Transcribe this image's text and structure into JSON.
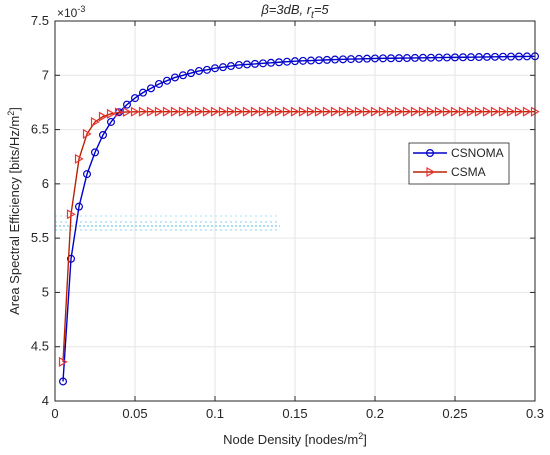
{
  "chart_data": {
    "type": "line",
    "title": {
      "beta": "β",
      "part1": "=3dB, r",
      "sub": "t",
      "part2": "=5"
    },
    "xlabel": {
      "main": "Node Density [nodes/m",
      "sup": "2",
      "close": "]"
    },
    "ylabel": {
      "main": "Area Spectral Efficiency [bits/Hz/m",
      "sup": "2",
      "close": "]"
    },
    "exponent": {
      "base": "×10",
      "sup": "-3"
    },
    "xlim": [
      0,
      0.3
    ],
    "ylim": [
      4,
      7.5
    ],
    "xticks": [
      0,
      0.05,
      0.1,
      0.15,
      0.2,
      0.25,
      0.3
    ],
    "xtick_labels": [
      "0",
      "0.05",
      "0.1",
      "0.15",
      "0.2",
      "0.25",
      "0.3"
    ],
    "yticks": [
      4,
      4.5,
      5,
      5.5,
      6,
      6.5,
      7,
      7.5
    ],
    "ytick_labels": [
      "4",
      "4.5",
      "5",
      "5.5",
      "6",
      "6.5",
      "7",
      "7.5"
    ],
    "grid": true,
    "legend_position": "right",
    "series": [
      {
        "name": "CSNOMA",
        "color": "#0000cc",
        "marker": "circle",
        "x": [
          0.005,
          0.01,
          0.015,
          0.02,
          0.025,
          0.03,
          0.035,
          0.04,
          0.045,
          0.05,
          0.055,
          0.06,
          0.065,
          0.07,
          0.075,
          0.08,
          0.085,
          0.09,
          0.095,
          0.1,
          0.105,
          0.11,
          0.115,
          0.12,
          0.125,
          0.13,
          0.135,
          0.14,
          0.145,
          0.15,
          0.155,
          0.16,
          0.165,
          0.17,
          0.175,
          0.18,
          0.185,
          0.19,
          0.195,
          0.2,
          0.205,
          0.21,
          0.215,
          0.22,
          0.225,
          0.23,
          0.235,
          0.24,
          0.245,
          0.25,
          0.255,
          0.26,
          0.265,
          0.27,
          0.275,
          0.28,
          0.285,
          0.29,
          0.295,
          0.3
        ],
        "y": [
          4.18,
          5.31,
          5.79,
          6.09,
          6.29,
          6.45,
          6.57,
          6.66,
          6.73,
          6.79,
          6.84,
          6.88,
          6.92,
          6.95,
          6.98,
          7.0,
          7.02,
          7.04,
          7.05,
          7.065,
          7.075,
          7.085,
          7.095,
          7.1,
          7.105,
          7.11,
          7.115,
          7.12,
          7.125,
          7.13,
          7.133,
          7.136,
          7.139,
          7.142,
          7.145,
          7.147,
          7.149,
          7.151,
          7.153,
          7.155,
          7.156,
          7.157,
          7.158,
          7.159,
          7.16,
          7.161,
          7.162,
          7.163,
          7.164,
          7.165,
          7.166,
          7.167,
          7.168,
          7.169,
          7.17,
          7.171,
          7.172,
          7.173,
          7.174,
          7.175
        ]
      },
      {
        "name": "CSMA",
        "color": "#bb2200",
        "marker": "triangle-right",
        "x": [
          0.005,
          0.01,
          0.015,
          0.02,
          0.025,
          0.03,
          0.035,
          0.04,
          0.045,
          0.05,
          0.055,
          0.06,
          0.065,
          0.07,
          0.075,
          0.08,
          0.085,
          0.09,
          0.095,
          0.1,
          0.105,
          0.11,
          0.115,
          0.12,
          0.125,
          0.13,
          0.135,
          0.14,
          0.145,
          0.15,
          0.155,
          0.16,
          0.165,
          0.17,
          0.175,
          0.18,
          0.185,
          0.19,
          0.195,
          0.2,
          0.205,
          0.21,
          0.215,
          0.22,
          0.225,
          0.23,
          0.235,
          0.24,
          0.245,
          0.25,
          0.255,
          0.26,
          0.265,
          0.27,
          0.275,
          0.28,
          0.285,
          0.29,
          0.295,
          0.3
        ],
        "y": [
          4.36,
          5.72,
          6.23,
          6.46,
          6.57,
          6.62,
          6.645,
          6.658,
          6.662,
          6.664,
          6.665,
          6.665,
          6.665,
          6.665,
          6.665,
          6.665,
          6.665,
          6.665,
          6.665,
          6.665,
          6.665,
          6.665,
          6.665,
          6.665,
          6.665,
          6.665,
          6.665,
          6.665,
          6.665,
          6.665,
          6.665,
          6.665,
          6.665,
          6.665,
          6.665,
          6.665,
          6.665,
          6.665,
          6.665,
          6.665,
          6.665,
          6.665,
          6.665,
          6.665,
          6.665,
          6.665,
          6.665,
          6.665,
          6.665,
          6.665,
          6.665,
          6.665,
          6.665,
          6.665,
          6.665,
          6.665,
          6.665,
          6.665,
          6.665,
          6.665
        ]
      }
    ]
  }
}
